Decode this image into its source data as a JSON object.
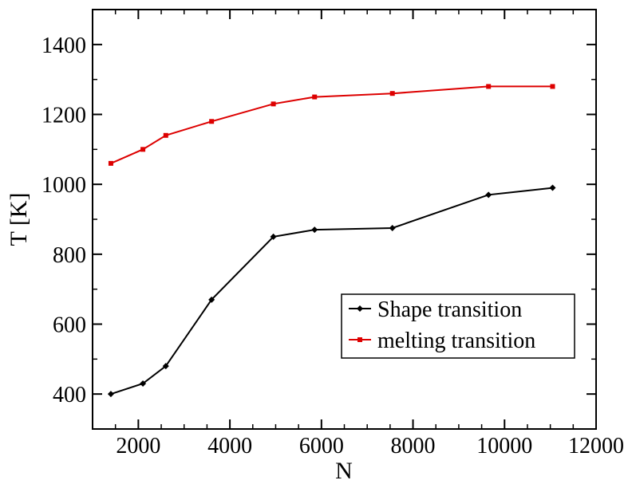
{
  "chart_data": {
    "type": "line",
    "title": "",
    "xlabel": "N",
    "ylabel": "T [K]",
    "xlim": [
      1000,
      12000
    ],
    "ylim": [
      300,
      1500
    ],
    "xticks": [
      2000,
      4000,
      6000,
      8000,
      10000,
      12000
    ],
    "xtick_labels": [
      "2000",
      "4000",
      "6000",
      "8000",
      "10000",
      "12000"
    ],
    "yticks": [
      400,
      600,
      800,
      1000,
      1200,
      1400
    ],
    "ytick_labels": [
      "400",
      "600",
      "800",
      "1000",
      "1200",
      "1400"
    ],
    "x_minor_step": 500,
    "y_minor_step": 100,
    "grid": false,
    "legend_position": "lower-right",
    "series": [
      {
        "name": "Shape transition",
        "color": "#000000",
        "marker": "diamond",
        "x": [
          1400,
          2100,
          2600,
          3600,
          4950,
          5850,
          7550,
          9650,
          11050
        ],
        "y": [
          400,
          430,
          480,
          670,
          850,
          870,
          875,
          970,
          990
        ]
      },
      {
        "name": "melting transition",
        "color": "#dd0000",
        "marker": "square",
        "x": [
          1400,
          2100,
          2600,
          3600,
          4950,
          5850,
          7550,
          9650,
          11050
        ],
        "y": [
          1060,
          1100,
          1140,
          1180,
          1230,
          1250,
          1260,
          1280,
          1280
        ]
      }
    ]
  }
}
